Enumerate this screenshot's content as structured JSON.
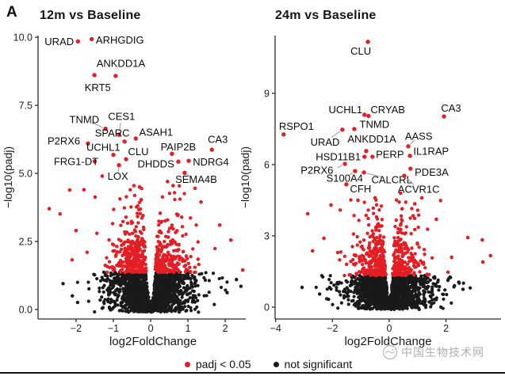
{
  "figure": {
    "panel_label": "A"
  },
  "watermark": {
    "text": "中国生物技术网",
    "logo": "fish-circle-icon"
  },
  "legend": {
    "items": [
      {
        "label": "padj < 0.05",
        "color": "#e41e25",
        "meaning": "significant"
      },
      {
        "label": "not significant",
        "color": "#1a1a1a",
        "meaning": "not significant"
      }
    ]
  },
  "chart_data": [
    {
      "type": "scatter",
      "variant": "volcano",
      "title": "12m vs Baseline",
      "xlabel": "log2FoldChange",
      "ylabel": "−log10(padj)",
      "xlim": [
        -3.02,
        2.55
      ],
      "ylim": [
        -0.35,
        10.06
      ],
      "xtick_values": [
        -2,
        -1,
        0,
        1,
        2
      ],
      "xtick_labels": [
        "−2",
        "−1",
        "0",
        "1",
        "2"
      ],
      "ytick_values": [
        0,
        2.5,
        5,
        7.5,
        10
      ],
      "ytick_labels": [
        "0.0",
        "2.5",
        "5.0",
        "7.5",
        "10.0"
      ],
      "grid": false,
      "significance_threshold_neglog10padj": 1.3,
      "color_significant": "#e41e25",
      "color_not_significant": "#1a1a1a",
      "labeled_genes": [
        {
          "name": "URAD",
          "x": -1.95,
          "y": 9.85,
          "lx": -2.06,
          "ly": 9.85,
          "anchor": "end",
          "leader": false
        },
        {
          "name": "ARHGDIG",
          "x": -1.58,
          "y": 9.93,
          "lx": -1.47,
          "ly": 9.9,
          "anchor": "start",
          "leader": false
        },
        {
          "name": "ANKDD1A",
          "x": -0.94,
          "y": 8.58,
          "lx": -0.8,
          "ly": 9.05,
          "anchor": "middle",
          "leader": false
        },
        {
          "name": "KRT5",
          "x": -1.51,
          "y": 8.61,
          "lx": -1.42,
          "ly": 8.15,
          "anchor": "middle",
          "leader": false
        },
        {
          "name": "TNMD",
          "x": -1.21,
          "y": 6.64,
          "lx": -1.78,
          "ly": 6.98,
          "anchor": "middle",
          "leader": true
        },
        {
          "name": "CES1",
          "x": -0.85,
          "y": 6.42,
          "lx": -0.78,
          "ly": 7.1,
          "anchor": "middle",
          "leader": true
        },
        {
          "name": "SPARC",
          "x": -0.7,
          "y": 6.17,
          "lx": -1.03,
          "ly": 6.48,
          "anchor": "middle",
          "leader": false
        },
        {
          "name": "ASAH1",
          "x": -0.4,
          "y": 6.28,
          "lx": -0.31,
          "ly": 6.52,
          "anchor": "start",
          "leader": false
        },
        {
          "name": "P2RX6",
          "x": -1.68,
          "y": 6.1,
          "lx": -1.89,
          "ly": 6.2,
          "anchor": "end",
          "leader": true
        },
        {
          "name": "UCHL1",
          "x": -1.0,
          "y": 5.68,
          "lx": -1.27,
          "ly": 5.96,
          "anchor": "middle",
          "leader": false
        },
        {
          "name": "CLU",
          "x": -0.66,
          "y": 5.52,
          "lx": -0.33,
          "ly": 5.8,
          "anchor": "middle",
          "leader": false
        },
        {
          "name": "PAIP2B",
          "x": 0.57,
          "y": 5.72,
          "lx": 0.74,
          "ly": 5.97,
          "anchor": "middle",
          "leader": false
        },
        {
          "name": "CA3",
          "x": 1.64,
          "y": 5.87,
          "lx": 1.8,
          "ly": 6.25,
          "anchor": "middle",
          "leader": false
        },
        {
          "name": "FRG1-DT",
          "x": -1.5,
          "y": 5.44,
          "lx": -1.4,
          "ly": 5.44,
          "anchor": "end",
          "leader": false
        },
        {
          "name": "DHDDS",
          "x": 0.74,
          "y": 5.43,
          "lx": 0.14,
          "ly": 5.35,
          "anchor": "middle",
          "leader": false
        },
        {
          "name": "NDRG4",
          "x": 1.02,
          "y": 5.46,
          "lx": 1.13,
          "ly": 5.42,
          "anchor": "start",
          "leader": false
        },
        {
          "name": "LOX",
          "x": -0.85,
          "y": 5.3,
          "lx": -0.88,
          "ly": 4.9,
          "anchor": "middle",
          "leader": true
        },
        {
          "name": "SEMA4B",
          "x": 0.91,
          "y": 5.02,
          "lx": 1.22,
          "ly": 4.78,
          "anchor": "middle",
          "leader": true
        }
      ],
      "extra_points": {
        "significant": [
          [
            -2.72,
            3.7
          ],
          [
            -2.43,
            3.51
          ],
          [
            -2.17,
            4.39
          ],
          [
            -1.79,
            4.4
          ],
          [
            -1.49,
            4.13
          ],
          [
            -1.3,
            4.9
          ],
          [
            2.47,
            1.45
          ],
          [
            1.85,
            3.1
          ],
          [
            1.35,
            3.95
          ],
          [
            1.19,
            4.45
          ],
          [
            -0.45,
            4.55
          ],
          [
            -0.3,
            4.5
          ],
          [
            0.45,
            4.7
          ],
          [
            0.6,
            4.55
          ],
          [
            2.15,
            2.55
          ],
          [
            -2.0,
            2.9
          ]
        ],
        "not_significant": [
          [
            -1.96,
            0.26
          ],
          [
            2.3,
            1.1
          ],
          [
            2.42,
            0.85
          ],
          [
            -2.35,
            0.95
          ],
          [
            2.05,
            0.62
          ],
          [
            -2.1,
            0.5
          ]
        ]
      },
      "cloud": {
        "seed": 42,
        "n_black": 1500,
        "n_red": 520,
        "black_ymax": 1.38,
        "black_gap_k": 0.1,
        "black_spread": 0.5,
        "black_tail_p": 0.05,
        "black_tail": 1.2,
        "red_y0": 1.36,
        "red_scale": 0.78,
        "red_cap": 4.55,
        "red_gap0": 0.06,
        "red_gap_k": 0.04,
        "red_spread": 0.4,
        "red_tail_p": 0.06,
        "red_tail": 0.85
      }
    },
    {
      "type": "scatter",
      "variant": "volcano",
      "title": "24m vs Baseline",
      "xlabel": "log2FoldChange",
      "ylabel": "−log10(padj)",
      "xlim": [
        -4.02,
        3.94
      ],
      "ylim": [
        -0.5,
        11.43
      ],
      "xtick_values": [
        -4,
        -2,
        0,
        2
      ],
      "xtick_labels": [
        "−4",
        "−2",
        "0",
        "2"
      ],
      "ytick_values": [
        0,
        3,
        6,
        9
      ],
      "ytick_labels": [
        "0",
        "3",
        "6",
        "9"
      ],
      "grid": false,
      "significance_threshold_neglog10padj": 1.3,
      "color_significant": "#e41e25",
      "color_not_significant": "#1a1a1a",
      "labeled_genes": [
        {
          "name": "CLU",
          "x": -0.75,
          "y": 11.17,
          "lx": -1.0,
          "ly": 10.78,
          "anchor": "middle",
          "leader": false
        },
        {
          "name": "UCHL1",
          "x": -0.87,
          "y": 8.1,
          "lx": -1.54,
          "ly": 8.32,
          "anchor": "middle",
          "leader": false
        },
        {
          "name": "CRYAB",
          "x": -0.73,
          "y": 8.05,
          "lx": -0.05,
          "ly": 8.32,
          "anchor": "middle",
          "leader": false
        },
        {
          "name": "CA3",
          "x": 1.93,
          "y": 8.03,
          "lx": 2.18,
          "ly": 8.38,
          "anchor": "middle",
          "leader": false
        },
        {
          "name": "RSPO1",
          "x": -3.72,
          "y": 7.27,
          "lx": -3.27,
          "ly": 7.62,
          "anchor": "middle",
          "leader": false
        },
        {
          "name": "TNMD",
          "x": -1.23,
          "y": 7.5,
          "lx": -0.52,
          "ly": 7.7,
          "anchor": "middle",
          "leader": false
        },
        {
          "name": "URAD",
          "x": -1.65,
          "y": 7.47,
          "lx": -2.26,
          "ly": 6.95,
          "anchor": "middle",
          "leader": true
        },
        {
          "name": "ANKDD1A",
          "x": -0.81,
          "y": 6.57,
          "lx": -0.61,
          "ly": 7.08,
          "anchor": "middle",
          "leader": false
        },
        {
          "name": "AASS",
          "x": 0.67,
          "y": 6.77,
          "lx": 1.04,
          "ly": 7.2,
          "anchor": "middle",
          "leader": true
        },
        {
          "name": "IL1RAP",
          "x": 0.73,
          "y": 6.37,
          "lx": 0.85,
          "ly": 6.57,
          "anchor": "start",
          "leader": false
        },
        {
          "name": "HSD11B1",
          "x": -0.87,
          "y": 6.33,
          "lx": -1.0,
          "ly": 6.33,
          "anchor": "end",
          "leader": false
        },
        {
          "name": "PERP",
          "x": -0.59,
          "y": 6.33,
          "lx": -0.47,
          "ly": 6.43,
          "anchor": "start",
          "leader": false
        },
        {
          "name": "P2RX6",
          "x": -1.56,
          "y": 6.03,
          "lx": -1.97,
          "ly": 5.77,
          "anchor": "end",
          "leader": true
        },
        {
          "name": "PDE3A",
          "x": 0.75,
          "y": 5.83,
          "lx": 0.9,
          "ly": 5.68,
          "anchor": "start",
          "leader": true
        },
        {
          "name": "S100A4",
          "x": -1.2,
          "y": 5.73,
          "lx": -1.57,
          "ly": 5.43,
          "anchor": "middle",
          "leader": true
        },
        {
          "name": "CALCRL",
          "x": -0.89,
          "y": 5.67,
          "lx": 0.09,
          "ly": 5.37,
          "anchor": "middle",
          "leader": true
        },
        {
          "name": "ACVR1C",
          "x": 0.53,
          "y": 5.53,
          "lx": 1.04,
          "ly": 4.97,
          "anchor": "middle",
          "leader": true
        },
        {
          "name": "CFH",
          "x": -1.51,
          "y": 5.17,
          "lx": -1.38,
          "ly": 4.98,
          "anchor": "start",
          "leader": false
        }
      ],
      "extra_points": {
        "significant": [
          [
            -2.87,
            3.93
          ],
          [
            -2.7,
            2.37
          ],
          [
            2.77,
            2.93
          ],
          [
            3.28,
            2.83
          ],
          [
            3.57,
            2.17
          ],
          [
            1.66,
            3.7
          ],
          [
            -2.3,
            2.9
          ],
          [
            2.2,
            2.1
          ],
          [
            -0.5,
            4.6
          ],
          [
            0.4,
            4.8
          ],
          [
            -1.1,
            4.5
          ],
          [
            0.9,
            4.35
          ],
          [
            1.15,
            4.6
          ],
          [
            3.3,
            1.9
          ],
          [
            -2.05,
            4.3
          ]
        ],
        "not_significant": [
          [
            -3.07,
            0.83
          ],
          [
            2.3,
            0.9
          ],
          [
            2.6,
            0.75
          ],
          [
            -2.45,
            0.55
          ],
          [
            2.45,
            1.05
          ],
          [
            -2.2,
            0.35
          ]
        ]
      },
      "cloud": {
        "seed": 99,
        "n_black": 1550,
        "n_red": 540,
        "black_ymax": 1.35,
        "black_gap_k": 0.1,
        "black_spread": 0.58,
        "black_tail_p": 0.06,
        "black_tail": 1.6,
        "red_y0": 1.33,
        "red_scale": 0.8,
        "red_cap": 4.7,
        "red_gap0": 0.06,
        "red_gap_k": 0.04,
        "red_spread": 0.46,
        "red_tail_p": 0.07,
        "red_tail": 1.2
      }
    }
  ]
}
